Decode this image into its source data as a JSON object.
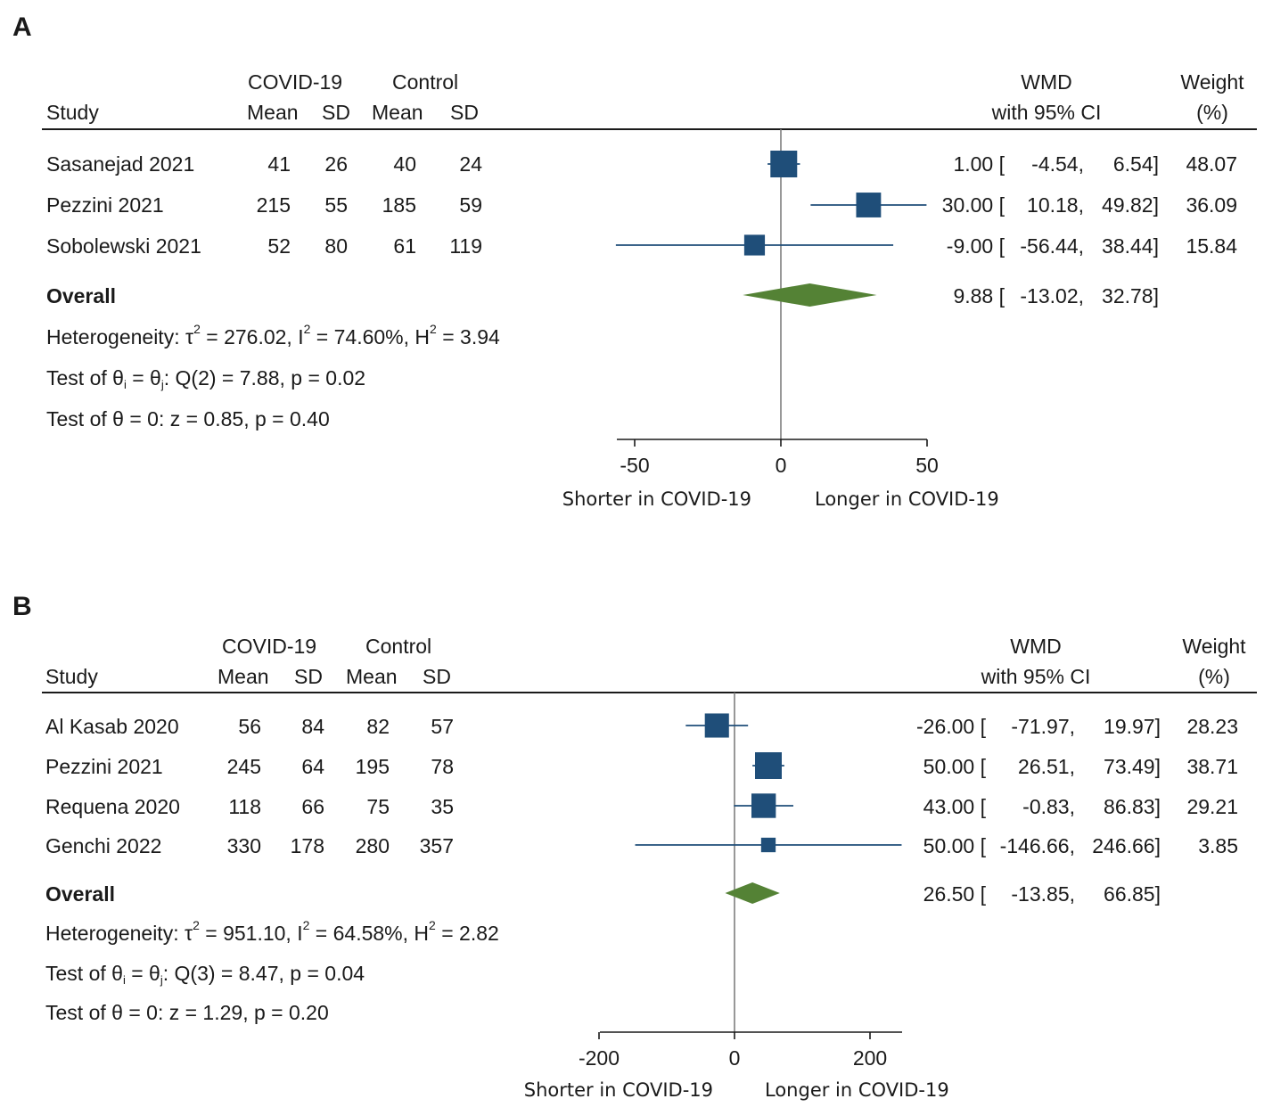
{
  "chart_data": [
    {
      "type": "forest",
      "panel_label": "A",
      "headers": {
        "study": "Study",
        "group1": "COVID-19",
        "group2": "Control",
        "mean": "Mean",
        "sd": "SD",
        "effect_line1": "WMD",
        "effect_line2": "with 95% CI",
        "weight_line1": "Weight",
        "weight_line2": "(%)"
      },
      "studies": [
        {
          "name": "Sasanejad 2021",
          "g1_mean": "41",
          "g1_sd": "26",
          "g2_mean": "40",
          "g2_sd": "24",
          "est": 1.0,
          "lo": -4.54,
          "hi": 6.54,
          "est_txt": "1.00 [",
          "lo_txt": "-4.54,",
          "hi_txt": "6.54]",
          "weight": 48.07,
          "weight_txt": "48.07"
        },
        {
          "name": "Pezzini 2021",
          "g1_mean": "215",
          "g1_sd": "55",
          "g2_mean": "185",
          "g2_sd": "59",
          "est": 30.0,
          "lo": 10.18,
          "hi": 49.82,
          "est_txt": "30.00 [",
          "lo_txt": "10.18,",
          "hi_txt": "49.82]",
          "weight": 36.09,
          "weight_txt": "36.09"
        },
        {
          "name": "Sobolewski 2021",
          "g1_mean": "52",
          "g1_sd": "80",
          "g2_mean": "61",
          "g2_sd": "119",
          "est": -9.0,
          "lo": -56.44,
          "hi": 38.44,
          "est_txt": "-9.00 [",
          "lo_txt": "-56.44,",
          "hi_txt": "38.44]",
          "weight": 15.84,
          "weight_txt": "15.84"
        }
      ],
      "overall": {
        "label": "Overall",
        "est": 9.88,
        "lo": -13.02,
        "hi": 32.78,
        "est_txt": "9.88 [",
        "lo_txt": "-13.02,",
        "hi_txt": "32.78]"
      },
      "stats": {
        "het_prefix": "Heterogeneity: τ",
        "het_mid1": " = 276.02, I",
        "het_mid2": " = 74.60%, H",
        "het_end": " = 3.94",
        "sq": "2",
        "test1_a": "Test of θ",
        "test1_b": " = θ",
        "test1_c": ": Q(2) = 7.88, p = 0.02",
        "sub_i": "i",
        "sub_j": "j",
        "test2": "Test of θ = 0: z = 0.85, p = 0.40"
      },
      "xticks": [
        -50,
        0,
        50
      ],
      "xtick_labels": [
        "-50",
        "0",
        "50"
      ],
      "xrange": [
        -56.44,
        49.82
      ],
      "left_caption": "Shorter in COVID-19",
      "right_caption": "Longer in COVID-19",
      "colors": {
        "marker": "#1f4e79",
        "diamond": "#548235",
        "null_line": "#7f7f7f"
      }
    },
    {
      "type": "forest",
      "panel_label": "B",
      "headers": {
        "study": "Study",
        "group1": "COVID-19",
        "group2": "Control",
        "mean": "Mean",
        "sd": "SD",
        "effect_line1": "WMD",
        "effect_line2": "with 95% CI",
        "weight_line1": "Weight",
        "weight_line2": "(%)"
      },
      "studies": [
        {
          "name": "Al Kasab 2020",
          "g1_mean": "56",
          "g1_sd": "84",
          "g2_mean": "82",
          "g2_sd": "57",
          "est": -26.0,
          "lo": -71.97,
          "hi": 19.97,
          "est_txt": "-26.00 [",
          "lo_txt": "-71.97,",
          "hi_txt": "19.97]",
          "weight": 28.23,
          "weight_txt": "28.23"
        },
        {
          "name": "Pezzini 2021",
          "g1_mean": "245",
          "g1_sd": "64",
          "g2_mean": "195",
          "g2_sd": "78",
          "est": 50.0,
          "lo": 26.51,
          "hi": 73.49,
          "est_txt": "50.00 [",
          "lo_txt": "26.51,",
          "hi_txt": "73.49]",
          "weight": 38.71,
          "weight_txt": "38.71"
        },
        {
          "name": "Requena 2020",
          "g1_mean": "118",
          "g1_sd": "66",
          "g2_mean": "75",
          "g2_sd": "35",
          "est": 43.0,
          "lo": -0.83,
          "hi": 86.83,
          "est_txt": "43.00 [",
          "lo_txt": "-0.83,",
          "hi_txt": "86.83]",
          "weight": 29.21,
          "weight_txt": "29.21"
        },
        {
          "name": "Genchi 2022",
          "g1_mean": "330",
          "g1_sd": "178",
          "g2_mean": "280",
          "g2_sd": "357",
          "est": 50.0,
          "lo": -146.66,
          "hi": 246.66,
          "est_txt": "50.00 [",
          "lo_txt": "-146.66,",
          "hi_txt": "246.66]",
          "weight": 3.85,
          "weight_txt": "3.85"
        }
      ],
      "overall": {
        "label": "Overall",
        "est": 26.5,
        "lo": -13.85,
        "hi": 66.85,
        "est_txt": "26.50 [",
        "lo_txt": "-13.85,",
        "hi_txt": "66.85]"
      },
      "stats": {
        "het_prefix": "Heterogeneity: τ",
        "het_mid1": " = 951.10, I",
        "het_mid2": " = 64.58%, H",
        "het_end": " = 2.82",
        "sq": "2",
        "test1_a": "Test of θ",
        "test1_b": " = θ",
        "test1_c": ": Q(3) = 8.47, p = 0.04",
        "sub_i": "i",
        "sub_j": "j",
        "test2": "Test of θ = 0: z = 1.29, p = 0.20"
      },
      "xticks": [
        -200,
        0,
        200
      ],
      "xtick_labels": [
        "-200",
        "0",
        "200"
      ],
      "xrange": [
        -200,
        246.66
      ],
      "left_caption": "Shorter in COVID-19",
      "right_caption": "Longer in COVID-19",
      "colors": {
        "marker": "#1f4e79",
        "diamond": "#548235",
        "null_line": "#7f7f7f"
      }
    }
  ]
}
